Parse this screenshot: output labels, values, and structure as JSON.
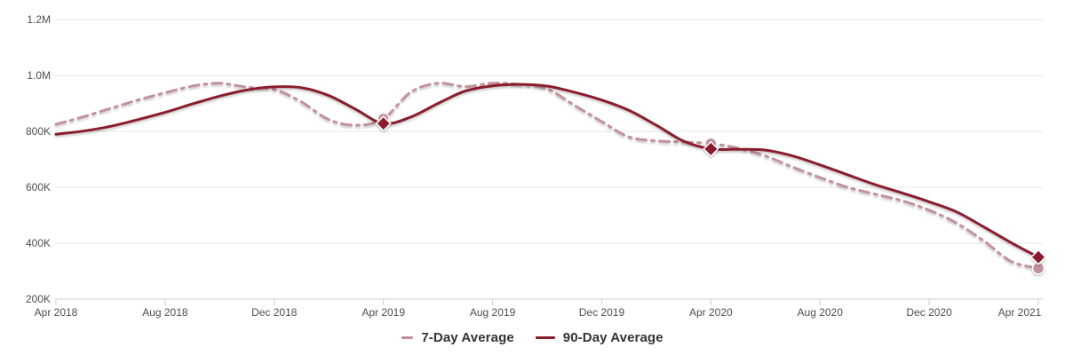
{
  "chart": {
    "background": "#ffffff",
    "grid_color": "#e6e6e6",
    "axis_color": "#c9cdd3",
    "label_color": "#4f4f4f",
    "legend_text_color": "#323232"
  },
  "chart_data": {
    "type": "line",
    "title": "",
    "xlabel": "",
    "ylabel": "",
    "grid": true,
    "legend_position": "bottom",
    "ylim": [
      200000,
      1200000
    ],
    "y_ticks": [
      {
        "label": "200K",
        "value": 200000
      },
      {
        "label": "400K",
        "value": 400000
      },
      {
        "label": "600K",
        "value": 600000
      },
      {
        "label": "800K",
        "value": 800000
      },
      {
        "label": "1.0M",
        "value": 1000000
      },
      {
        "label": "1.2M",
        "value": 1200000
      }
    ],
    "x": [
      "Apr 2018",
      "May 2018",
      "Jun 2018",
      "Jul 2018",
      "Aug 2018",
      "Sep 2018",
      "Oct 2018",
      "Nov 2018",
      "Dec 2018",
      "Jan 2019",
      "Feb 2019",
      "Mar 2019",
      "Apr 2019",
      "May 2019",
      "Jun 2019",
      "Jul 2019",
      "Aug 2019",
      "Sep 2019",
      "Oct 2019",
      "Nov 2019",
      "Dec 2019",
      "Jan 2020",
      "Feb 2020",
      "Mar 2020",
      "Apr 2020",
      "May 2020",
      "Jun 2020",
      "Jul 2020",
      "Aug 2020",
      "Sep 2020",
      "Oct 2020",
      "Nov 2020",
      "Dec 2020",
      "Jan 2021",
      "Feb 2021",
      "Mar 2021",
      "Apr 2021"
    ],
    "x_tick_indices": [
      0,
      4,
      8,
      12,
      16,
      20,
      24,
      28,
      32,
      36
    ],
    "series": [
      {
        "name": "7-Day Average",
        "color": "#c2919b",
        "line_style": "dashed",
        "marker": "circle",
        "marker_indices": [
          12,
          24,
          36
        ],
        "values": [
          825000,
          852000,
          882000,
          912000,
          938000,
          962000,
          972000,
          958000,
          950000,
          905000,
          842000,
          822000,
          845000,
          940000,
          972000,
          960000,
          972000,
          968000,
          952000,
          893000,
          835000,
          780000,
          766000,
          762000,
          756000,
          740000,
          712000,
          672000,
          635000,
          600000,
          576000,
          552000,
          518000,
          472000,
          408000,
          335000,
          310000
        ]
      },
      {
        "name": "90-Day Average",
        "color": "#8a1e2d",
        "line_style": "solid",
        "marker": "diamond",
        "marker_indices": [
          12,
          24,
          36
        ],
        "values": [
          790000,
          801000,
          818000,
          842000,
          868000,
          898000,
          926000,
          948000,
          959000,
          956000,
          928000,
          878000,
          828000,
          851000,
          900000,
          944000,
          963000,
          968000,
          962000,
          940000,
          912000,
          875000,
          822000,
          765000,
          737000,
          736000,
          733000,
          712000,
          680000,
          645000,
          610000,
          580000,
          548000,
          512000,
          458000,
          402000,
          350000
        ]
      }
    ]
  }
}
